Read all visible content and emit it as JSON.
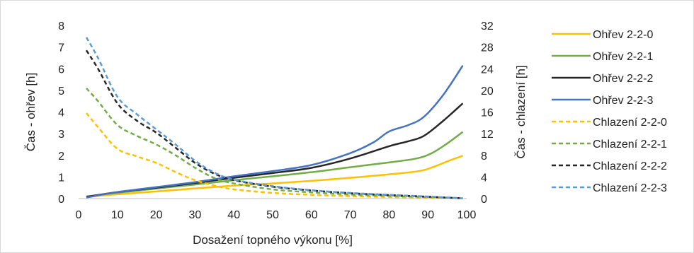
{
  "chart_data": {
    "type": "line",
    "title": "",
    "xlabel": "Dosažení topného výkonu [%]",
    "ylabel_left": "Čas - ohřev [h]",
    "ylabel_right": "Čas - chlazení [h]",
    "xlim": [
      0,
      100
    ],
    "ylim_left": [
      0,
      8
    ],
    "ylim_right": [
      0,
      32
    ],
    "xticks": [
      "0",
      "10",
      "20",
      "30",
      "40",
      "50",
      "60",
      "70",
      "80",
      "90",
      "100"
    ],
    "yticks_left": [
      "0",
      "1",
      "2",
      "3",
      "4",
      "5",
      "6",
      "7",
      "8"
    ],
    "yticks_right": [
      "0",
      "4",
      "8",
      "12",
      "16",
      "20",
      "24",
      "28",
      "32"
    ],
    "grid": false,
    "legend_position": "right",
    "series": [
      {
        "name": "Ohřev 2-2-0",
        "axis": "left",
        "style": "solid",
        "color": "#FFC000",
        "points": [
          [
            2,
            0.08
          ],
          [
            10,
            0.2
          ],
          [
            20,
            0.33
          ],
          [
            30,
            0.47
          ],
          [
            40,
            0.6
          ],
          [
            50,
            0.7
          ],
          [
            60,
            0.82
          ],
          [
            70,
            0.96
          ],
          [
            80,
            1.12
          ],
          [
            88,
            1.28
          ],
          [
            92,
            1.5
          ],
          [
            95,
            1.72
          ],
          [
            99,
            1.98
          ]
        ]
      },
      {
        "name": "Ohřev 2-2-1",
        "axis": "left",
        "style": "solid",
        "color": "#70AD47",
        "points": [
          [
            2,
            0.1
          ],
          [
            10,
            0.27
          ],
          [
            20,
            0.46
          ],
          [
            30,
            0.65
          ],
          [
            40,
            0.85
          ],
          [
            50,
            1.03
          ],
          [
            60,
            1.22
          ],
          [
            70,
            1.45
          ],
          [
            80,
            1.67
          ],
          [
            87,
            1.85
          ],
          [
            91,
            2.1
          ],
          [
            95,
            2.55
          ],
          [
            99,
            3.08
          ]
        ]
      },
      {
        "name": "Ohřev 2-2-2",
        "axis": "left",
        "style": "solid",
        "color": "#262626",
        "points": [
          [
            2,
            0.08
          ],
          [
            10,
            0.3
          ],
          [
            20,
            0.5
          ],
          [
            30,
            0.72
          ],
          [
            40,
            0.96
          ],
          [
            50,
            1.18
          ],
          [
            60,
            1.42
          ],
          [
            70,
            1.85
          ],
          [
            80,
            2.42
          ],
          [
            85,
            2.65
          ],
          [
            89,
            2.9
          ],
          [
            94,
            3.6
          ],
          [
            99,
            4.4
          ]
        ]
      },
      {
        "name": "Ohřev 2-2-3",
        "axis": "left",
        "style": "solid",
        "color": "#4472C4",
        "points": [
          [
            2,
            0.05
          ],
          [
            10,
            0.3
          ],
          [
            20,
            0.53
          ],
          [
            30,
            0.76
          ],
          [
            40,
            1.03
          ],
          [
            50,
            1.27
          ],
          [
            60,
            1.55
          ],
          [
            70,
            2.1
          ],
          [
            76,
            2.6
          ],
          [
            80,
            3.1
          ],
          [
            85,
            3.4
          ],
          [
            89,
            3.78
          ],
          [
            94,
            4.8
          ],
          [
            99,
            6.15
          ]
        ]
      },
      {
        "name": "Chlazení 2-2-0",
        "axis": "right",
        "style": "dashed",
        "color": "#FFC000",
        "points": [
          [
            2,
            15.8
          ],
          [
            5,
            13.2
          ],
          [
            10,
            9.2
          ],
          [
            15,
            7.8
          ],
          [
            20,
            6.6
          ],
          [
            25,
            4.9
          ],
          [
            30,
            3.4
          ],
          [
            35,
            2.4
          ],
          [
            40,
            1.7
          ],
          [
            50,
            1.05
          ],
          [
            60,
            0.7
          ],
          [
            70,
            0.45
          ],
          [
            80,
            0.3
          ],
          [
            90,
            0.18
          ],
          [
            99,
            0.05
          ]
        ]
      },
      {
        "name": "Chlazení 2-2-1",
        "axis": "right",
        "style": "dashed",
        "color": "#70AD47",
        "points": [
          [
            2,
            20.4
          ],
          [
            5,
            18.0
          ],
          [
            10,
            13.6
          ],
          [
            15,
            11.6
          ],
          [
            20,
            10.0
          ],
          [
            25,
            8.0
          ],
          [
            30,
            5.7
          ],
          [
            35,
            3.8
          ],
          [
            40,
            2.8
          ],
          [
            50,
            1.7
          ],
          [
            60,
            1.15
          ],
          [
            70,
            0.75
          ],
          [
            80,
            0.5
          ],
          [
            90,
            0.28
          ],
          [
            99,
            0.05
          ]
        ]
      },
      {
        "name": "Chlazení 2-2-2",
        "axis": "right",
        "style": "dashed",
        "color": "#262626",
        "points": [
          [
            2,
            27.4
          ],
          [
            5,
            24.0
          ],
          [
            10,
            17.6
          ],
          [
            15,
            14.4
          ],
          [
            20,
            12.2
          ],
          [
            25,
            9.4
          ],
          [
            30,
            6.6
          ],
          [
            35,
            4.6
          ],
          [
            40,
            3.4
          ],
          [
            50,
            2.2
          ],
          [
            60,
            1.5
          ],
          [
            70,
            1.0
          ],
          [
            80,
            0.65
          ],
          [
            90,
            0.35
          ],
          [
            99,
            0.05
          ]
        ]
      },
      {
        "name": "Chlazení 2-2-3",
        "axis": "right",
        "style": "dashed",
        "color": "#5B9BD5",
        "points": [
          [
            2,
            29.8
          ],
          [
            5,
            26.0
          ],
          [
            10,
            18.8
          ],
          [
            15,
            15.6
          ],
          [
            20,
            12.8
          ],
          [
            25,
            10.0
          ],
          [
            30,
            7.0
          ],
          [
            35,
            4.8
          ],
          [
            40,
            3.5
          ],
          [
            50,
            2.3
          ],
          [
            60,
            1.55
          ],
          [
            70,
            1.05
          ],
          [
            80,
            0.7
          ],
          [
            90,
            0.38
          ],
          [
            99,
            0.05
          ]
        ]
      }
    ]
  }
}
